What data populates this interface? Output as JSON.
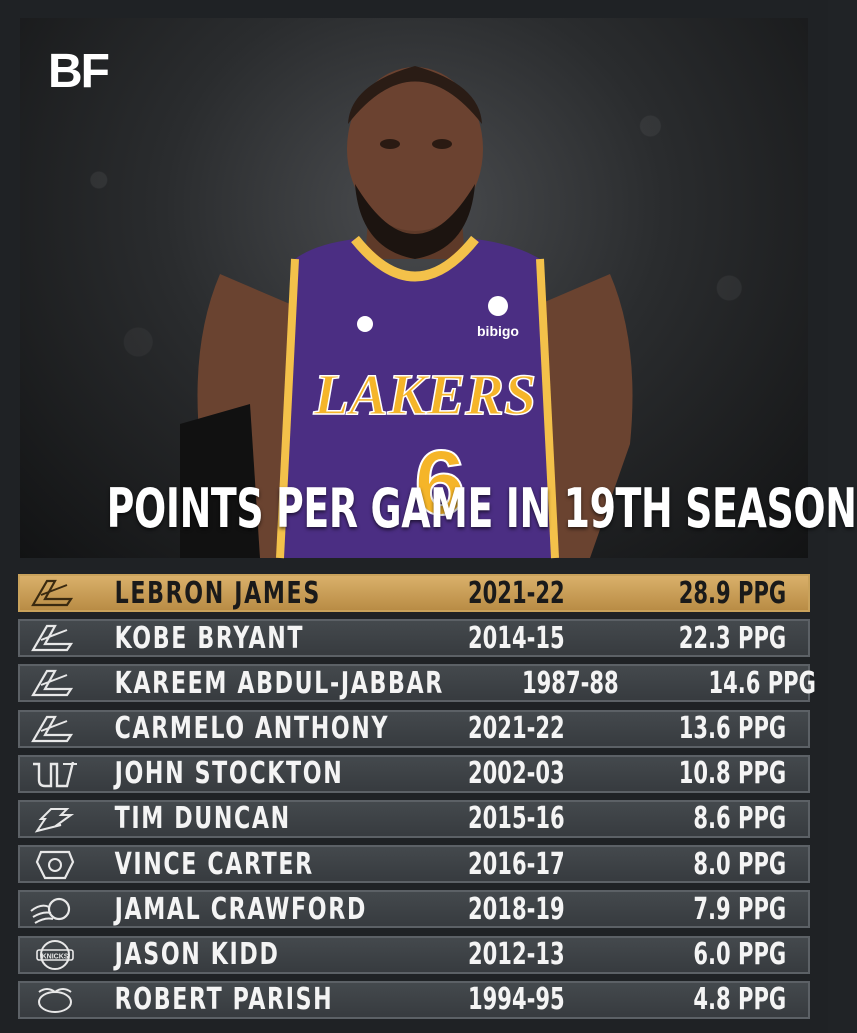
{
  "brand": {
    "logo_text": "BF"
  },
  "title": "POINTS PER GAME IN 19TH SEASON",
  "jersey": {
    "team": "LAKERS",
    "number": "6",
    "sponsor": "bibigo"
  },
  "rows": [
    {
      "name": "LEBRON JAMES",
      "season": "2021-22",
      "ppg": "28.9 PPG",
      "team_icon": "lakers-icon",
      "highlight": true
    },
    {
      "name": "KOBE BRYANT",
      "season": "2014-15",
      "ppg": "22.3 PPG",
      "team_icon": "lakers-icon",
      "highlight": false
    },
    {
      "name": "KAREEM ABDUL-JABBAR",
      "season": "1987-88",
      "ppg": "14.6 PPG",
      "team_icon": "lakers-icon",
      "highlight": false
    },
    {
      "name": "CARMELO ANTHONY",
      "season": "2021-22",
      "ppg": "13.6 PPG",
      "team_icon": "lakers-icon",
      "highlight": false
    },
    {
      "name": "JOHN STOCKTON",
      "season": "2002-03",
      "ppg": "10.8 PPG",
      "team_icon": "jazz-icon",
      "highlight": false
    },
    {
      "name": "TIM DUNCAN",
      "season": "2015-16",
      "ppg": "8.6 PPG",
      "team_icon": "spurs-icon",
      "highlight": false
    },
    {
      "name": "VINCE CARTER",
      "season": "2016-17",
      "ppg": "8.0 PPG",
      "team_icon": "grizzlies-icon",
      "highlight": false
    },
    {
      "name": "JAMAL CRAWFORD",
      "season": "2018-19",
      "ppg": "7.9 PPG",
      "team_icon": "suns-icon",
      "highlight": false
    },
    {
      "name": "JASON KIDD",
      "season": "2012-13",
      "ppg": "6.0 PPG",
      "team_icon": "knicks-icon",
      "highlight": false
    },
    {
      "name": "ROBERT PARISH",
      "season": "1994-95",
      "ppg": "4.8 PPG",
      "team_icon": "hornets-icon",
      "highlight": false
    }
  ],
  "colors": {
    "highlight": "#c9a25b",
    "row_bg": "#3d4145",
    "lakers_purple": "#552583",
    "lakers_gold": "#f5b529"
  }
}
